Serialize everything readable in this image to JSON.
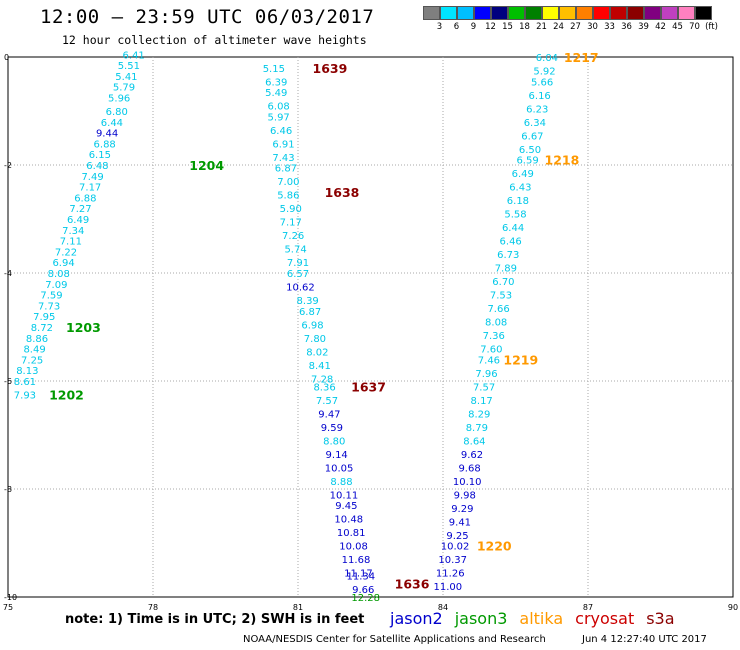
{
  "header": {
    "title": "12:00 – 23:59 UTC 06/03/2017",
    "subtitle": "12 hour collection of altimeter wave heights"
  },
  "colorbar": {
    "colors": [
      "#7f7f7f",
      "#00e5ff",
      "#00bfff",
      "#0000ff",
      "#00007f",
      "#00bf00",
      "#008000",
      "#ffff00",
      "#ffbf00",
      "#ff7f00",
      "#ff0000",
      "#bf0000",
      "#8b0000",
      "#800080",
      "#bf40bf",
      "#ff80c0",
      "#000000"
    ],
    "labels": [
      "3",
      "6",
      "9",
      "12",
      "15",
      "18",
      "21",
      "24",
      "27",
      "30",
      "33",
      "36",
      "39",
      "42",
      "45",
      "70",
      "(ft)"
    ]
  },
  "axes": {
    "x_ticks": [
      "75",
      "78",
      "81",
      "84",
      "87",
      "90"
    ],
    "y_ticks": [
      "0",
      "-2",
      "-4",
      "-6",
      "-8",
      "-10"
    ],
    "xlim": [
      75,
      90
    ],
    "ylim": [
      -10,
      0
    ]
  },
  "colors": {
    "jason2": "#0000cc",
    "jason3": "#009900",
    "altika": "#ff9900",
    "cryosat": "#cc0000",
    "s3a": "#8b0000",
    "cyan": "#00c8e8",
    "grid": "#aaaaaa"
  },
  "map_data": {
    "passes": [
      {
        "id": "1204",
        "color": "green",
        "lon": 78.75,
        "lat": -2.0
      },
      {
        "id": "1203",
        "color": "green",
        "lon": 76.2,
        "lat": -5.0
      },
      {
        "id": "1202",
        "color": "green",
        "lon": 75.85,
        "lat": -6.25
      },
      {
        "id": "1639",
        "color": "darkred",
        "lon": 81.3,
        "lat": -0.2
      },
      {
        "id": "1638",
        "color": "darkred",
        "lon": 81.55,
        "lat": -2.5
      },
      {
        "id": "1637",
        "color": "darkred",
        "lon": 82.1,
        "lat": -6.1
      },
      {
        "id": "1636",
        "color": "darkred",
        "lon": 83.0,
        "lat": -9.75
      },
      {
        "id": "1217",
        "color": "orange",
        "lon": 86.5,
        "lat": 0.0
      },
      {
        "id": "1218",
        "color": "orange",
        "lon": 86.1,
        "lat": -1.9
      },
      {
        "id": "1219",
        "color": "orange",
        "lon": 85.25,
        "lat": -5.6
      },
      {
        "id": "1220",
        "color": "orange",
        "lon": 84.7,
        "lat": -9.05
      }
    ],
    "tracks": [
      {
        "name": "track-1204",
        "obs": [
          {
            "v": "6.41",
            "c": "cyan",
            "lon": 77.6,
            "lat": 0.05
          },
          {
            "v": "5.51",
            "c": "cyan",
            "lon": 77.5,
            "lat": -0.15
          },
          {
            "v": "5.41",
            "c": "cyan",
            "lon": 77.45,
            "lat": -0.35
          },
          {
            "v": "5.79",
            "c": "cyan",
            "lon": 77.4,
            "lat": -0.55
          },
          {
            "v": "5.96",
            "c": "cyan",
            "lon": 77.3,
            "lat": -0.75
          },
          {
            "v": "6.80",
            "c": "cyan",
            "lon": 77.25,
            "lat": -1.0
          },
          {
            "v": "6.44",
            "c": "cyan",
            "lon": 77.15,
            "lat": -1.2
          },
          {
            "v": "9.44",
            "c": "blue",
            "lon": 77.05,
            "lat": -1.4
          },
          {
            "v": "6.88",
            "c": "cyan",
            "lon": 77.0,
            "lat": -1.6
          },
          {
            "v": "6.15",
            "c": "cyan",
            "lon": 76.9,
            "lat": -1.8
          },
          {
            "v": "6.48",
            "c": "cyan",
            "lon": 76.85,
            "lat": -2.0
          },
          {
            "v": "7.49",
            "c": "cyan",
            "lon": 76.75,
            "lat": -2.2
          },
          {
            "v": "7.17",
            "c": "cyan",
            "lon": 76.7,
            "lat": -2.4
          },
          {
            "v": "6.88",
            "c": "cyan",
            "lon": 76.6,
            "lat": -2.6
          },
          {
            "v": "7.27",
            "c": "cyan",
            "lon": 76.5,
            "lat": -2.8
          },
          {
            "v": "6.49",
            "c": "cyan",
            "lon": 76.45,
            "lat": -3.0
          },
          {
            "v": "7.34",
            "c": "cyan",
            "lon": 76.35,
            "lat": -3.2
          },
          {
            "v": "7.11",
            "c": "cyan",
            "lon": 76.3,
            "lat": -3.4
          },
          {
            "v": "7.22",
            "c": "cyan",
            "lon": 76.2,
            "lat": -3.6
          },
          {
            "v": "6.94",
            "c": "cyan",
            "lon": 76.15,
            "lat": -3.8
          },
          {
            "v": "8.08",
            "c": "cyan",
            "lon": 76.05,
            "lat": -4.0
          },
          {
            "v": "7.09",
            "c": "cyan",
            "lon": 76.0,
            "lat": -4.2
          },
          {
            "v": "7.59",
            "c": "cyan",
            "lon": 75.9,
            "lat": -4.4
          },
          {
            "v": "7.73",
            "c": "cyan",
            "lon": 75.85,
            "lat": -4.6
          },
          {
            "v": "7.95",
            "c": "cyan",
            "lon": 75.75,
            "lat": -4.8
          },
          {
            "v": "8.72",
            "c": "cyan",
            "lon": 75.7,
            "lat": -5.0
          },
          {
            "v": "8.86",
            "c": "cyan",
            "lon": 75.6,
            "lat": -5.2
          },
          {
            "v": "8.49",
            "c": "cyan",
            "lon": 75.55,
            "lat": -5.4
          },
          {
            "v": "7.25",
            "c": "cyan",
            "lon": 75.5,
            "lat": -5.6
          },
          {
            "v": "8.13",
            "c": "cyan",
            "lon": 75.4,
            "lat": -5.8
          },
          {
            "v": "8.61",
            "c": "cyan",
            "lon": 75.35,
            "lat": -6.0
          },
          {
            "v": "7.93",
            "c": "cyan",
            "lon": 75.35,
            "lat": -6.25
          }
        ]
      },
      {
        "name": "track-1639",
        "obs": [
          {
            "v": "5.15",
            "c": "cyan",
            "lon": 80.5,
            "lat": -0.2
          },
          {
            "v": "6.39",
            "c": "cyan",
            "lon": 80.55,
            "lat": -0.45
          },
          {
            "v": "5.49",
            "c": "cyan",
            "lon": 80.55,
            "lat": -0.65
          },
          {
            "v": "6.08",
            "c": "cyan",
            "lon": 80.6,
            "lat": -0.9
          },
          {
            "v": "5.97",
            "c": "cyan",
            "lon": 80.6,
            "lat": -1.1
          },
          {
            "v": "6.46",
            "c": "cyan",
            "lon": 80.65,
            "lat": -1.35
          },
          {
            "v": "6.91",
            "c": "cyan",
            "lon": 80.7,
            "lat": -1.6
          },
          {
            "v": "7.43",
            "c": "cyan",
            "lon": 80.7,
            "lat": -1.85
          },
          {
            "v": "6.87",
            "c": "cyan",
            "lon": 80.75,
            "lat": -2.05
          },
          {
            "v": "7.00",
            "c": "cyan",
            "lon": 80.8,
            "lat": -2.3
          },
          {
            "v": "5.86",
            "c": "cyan",
            "lon": 80.8,
            "lat": -2.55
          },
          {
            "v": "5.90",
            "c": "cyan",
            "lon": 80.85,
            "lat": -2.8
          },
          {
            "v": "7.17",
            "c": "cyan",
            "lon": 80.85,
            "lat": -3.05
          },
          {
            "v": "7.26",
            "c": "cyan",
            "lon": 80.9,
            "lat": -3.3
          },
          {
            "v": "5.74",
            "c": "cyan",
            "lon": 80.95,
            "lat": -3.55
          },
          {
            "v": "7.91",
            "c": "cyan",
            "lon": 81.0,
            "lat": -3.8
          },
          {
            "v": "6.57",
            "c": "cyan",
            "lon": 81.0,
            "lat": -4.0
          },
          {
            "v": "10.62",
            "c": "blue",
            "lon": 81.05,
            "lat": -4.25
          },
          {
            "v": "8.39",
            "c": "cyan",
            "lon": 81.2,
            "lat": -4.5
          },
          {
            "v": "6.87",
            "c": "cyan",
            "lon": 81.25,
            "lat": -4.7
          },
          {
            "v": "6.98",
            "c": "cyan",
            "lon": 81.3,
            "lat": -4.95
          },
          {
            "v": "7.80",
            "c": "cyan",
            "lon": 81.35,
            "lat": -5.2
          },
          {
            "v": "8.02",
            "c": "cyan",
            "lon": 81.4,
            "lat": -5.45
          },
          {
            "v": "8.41",
            "c": "cyan",
            "lon": 81.45,
            "lat": -5.7
          },
          {
            "v": "7.28",
            "c": "cyan",
            "lon": 81.5,
            "lat": -5.95
          },
          {
            "v": "8.36",
            "c": "cyan",
            "lon": 81.55,
            "lat": -6.1
          },
          {
            "v": "7.57",
            "c": "cyan",
            "lon": 81.6,
            "lat": -6.35
          },
          {
            "v": "9.47",
            "c": "blue",
            "lon": 81.65,
            "lat": -6.6
          },
          {
            "v": "9.59",
            "c": "blue",
            "lon": 81.7,
            "lat": -6.85
          },
          {
            "v": "8.80",
            "c": "cyan",
            "lon": 81.75,
            "lat": -7.1
          },
          {
            "v": "9.14",
            "c": "blue",
            "lon": 81.8,
            "lat": -7.35
          },
          {
            "v": "10.05",
            "c": "blue",
            "lon": 81.85,
            "lat": -7.6
          },
          {
            "v": "8.88",
            "c": "cyan",
            "lon": 81.9,
            "lat": -7.85
          },
          {
            "v": "10.11",
            "c": "blue",
            "lon": 81.95,
            "lat": -8.1
          },
          {
            "v": "9.45",
            "c": "blue",
            "lon": 82.0,
            "lat": -8.3
          },
          {
            "v": "10.48",
            "c": "blue",
            "lon": 82.05,
            "lat": -8.55
          },
          {
            "v": "10.81",
            "c": "blue",
            "lon": 82.1,
            "lat": -8.8
          },
          {
            "v": "10.08",
            "c": "blue",
            "lon": 82.15,
            "lat": -9.05
          },
          {
            "v": "11.68",
            "c": "blue",
            "lon": 82.2,
            "lat": -9.3
          },
          {
            "v": "11.17",
            "c": "blue",
            "lon": 82.25,
            "lat": -9.55
          },
          {
            "v": "11.34",
            "c": "blue",
            "lon": 82.3,
            "lat": -9.6
          },
          {
            "v": "9.66",
            "c": "blue",
            "lon": 82.35,
            "lat": -9.85
          },
          {
            "v": "12.28",
            "c": "green",
            "lon": 82.4,
            "lat": -10.0
          }
        ]
      },
      {
        "name": "track-1217",
        "obs": [
          {
            "v": "6.04",
            "c": "cyan",
            "lon": 86.15,
            "lat": 0.0
          },
          {
            "v": "5.92",
            "c": "cyan",
            "lon": 86.1,
            "lat": -0.25
          },
          {
            "v": "5.66",
            "c": "cyan",
            "lon": 86.05,
            "lat": -0.45
          },
          {
            "v": "6.16",
            "c": "cyan",
            "lon": 86.0,
            "lat": -0.7
          },
          {
            "v": "6.23",
            "c": "cyan",
            "lon": 85.95,
            "lat": -0.95
          },
          {
            "v": "6.34",
            "c": "cyan",
            "lon": 85.9,
            "lat": -1.2
          },
          {
            "v": "6.67",
            "c": "cyan",
            "lon": 85.85,
            "lat": -1.45
          },
          {
            "v": "6.50",
            "c": "cyan",
            "lon": 85.8,
            "lat": -1.7
          },
          {
            "v": "6.59",
            "c": "cyan",
            "lon": 85.75,
            "lat": -1.9
          },
          {
            "v": "6.49",
            "c": "cyan",
            "lon": 85.65,
            "lat": -2.15
          },
          {
            "v": "6.43",
            "c": "cyan",
            "lon": 85.6,
            "lat": -2.4
          },
          {
            "v": "6.18",
            "c": "cyan",
            "lon": 85.55,
            "lat": -2.65
          },
          {
            "v": "5.58",
            "c": "cyan",
            "lon": 85.5,
            "lat": -2.9
          },
          {
            "v": "6.44",
            "c": "cyan",
            "lon": 85.45,
            "lat": -3.15
          },
          {
            "v": "6.46",
            "c": "cyan",
            "lon": 85.4,
            "lat": -3.4
          },
          {
            "v": "6.73",
            "c": "cyan",
            "lon": 85.35,
            "lat": -3.65
          },
          {
            "v": "7.89",
            "c": "cyan",
            "lon": 85.3,
            "lat": -3.9
          },
          {
            "v": "6.70",
            "c": "cyan",
            "lon": 85.25,
            "lat": -4.15
          },
          {
            "v": "7.53",
            "c": "cyan",
            "lon": 85.2,
            "lat": -4.4
          },
          {
            "v": "7.66",
            "c": "cyan",
            "lon": 85.15,
            "lat": -4.65
          },
          {
            "v": "8.08",
            "c": "cyan",
            "lon": 85.1,
            "lat": -4.9
          },
          {
            "v": "7.36",
            "c": "cyan",
            "lon": 85.05,
            "lat": -5.15
          },
          {
            "v": "7.60",
            "c": "cyan",
            "lon": 85.0,
            "lat": -5.4
          },
          {
            "v": "7.46",
            "c": "cyan",
            "lon": 84.95,
            "lat": -5.6
          },
          {
            "v": "7.96",
            "c": "cyan",
            "lon": 84.9,
            "lat": -5.85
          },
          {
            "v": "7.57",
            "c": "cyan",
            "lon": 84.85,
            "lat": -6.1
          },
          {
            "v": "8.17",
            "c": "cyan",
            "lon": 84.8,
            "lat": -6.35
          },
          {
            "v": "8.29",
            "c": "cyan",
            "lon": 84.75,
            "lat": -6.6
          },
          {
            "v": "8.79",
            "c": "cyan",
            "lon": 84.7,
            "lat": -6.85
          },
          {
            "v": "8.64",
            "c": "cyan",
            "lon": 84.65,
            "lat": -7.1
          },
          {
            "v": "9.62",
            "c": "blue",
            "lon": 84.6,
            "lat": -7.35
          },
          {
            "v": "9.68",
            "c": "blue",
            "lon": 84.55,
            "lat": -7.6
          },
          {
            "v": "10.10",
            "c": "blue",
            "lon": 84.5,
            "lat": -7.85
          },
          {
            "v": "9.98",
            "c": "blue",
            "lon": 84.45,
            "lat": -8.1
          },
          {
            "v": "9.29",
            "c": "blue",
            "lon": 84.4,
            "lat": -8.35
          },
          {
            "v": "9.41",
            "c": "blue",
            "lon": 84.35,
            "lat": -8.6
          },
          {
            "v": "9.25",
            "c": "blue",
            "lon": 84.3,
            "lat": -8.85
          },
          {
            "v": "10.02",
            "c": "blue",
            "lon": 84.25,
            "lat": -9.05
          },
          {
            "v": "10.37",
            "c": "blue",
            "lon": 84.2,
            "lat": -9.3
          },
          {
            "v": "11.26",
            "c": "blue",
            "lon": 84.15,
            "lat": -9.55
          },
          {
            "v": "11.00",
            "c": "blue",
            "lon": 84.1,
            "lat": -9.8
          }
        ]
      }
    ]
  },
  "footer": {
    "note": "note:  1) Time is in UTC;  2) SWH is in feet",
    "legend": [
      {
        "label": "jason2",
        "color": "#0000cc"
      },
      {
        "label": "jason3",
        "color": "#009900"
      },
      {
        "label": "altika",
        "color": "#ff9900"
      },
      {
        "label": "cryosat",
        "color": "#cc0000"
      },
      {
        "label": "s3a",
        "color": "#8b0000"
      }
    ],
    "credit": "NOAA/NESDIS Center for Satellite Applications and Research",
    "timestamp": "Jun  4 12:27:40 UTC 2017"
  }
}
